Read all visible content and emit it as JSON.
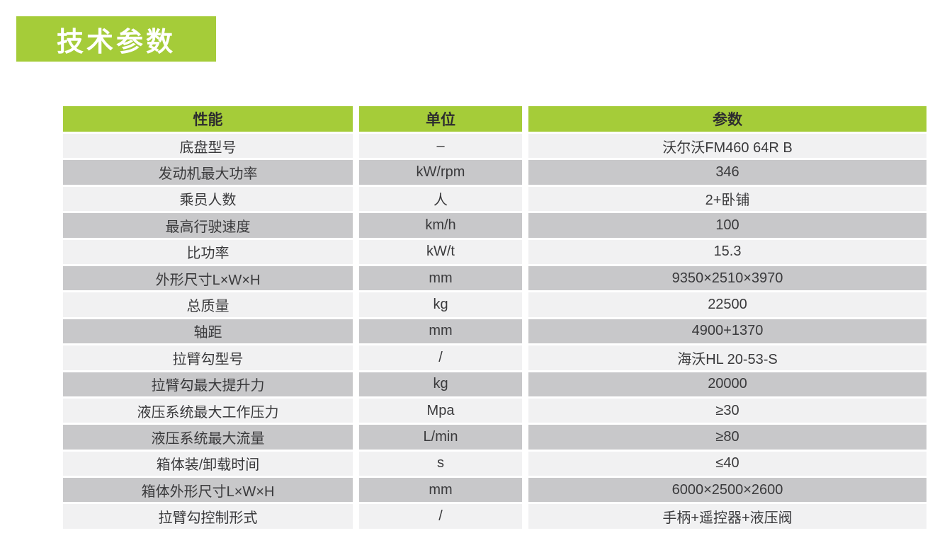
{
  "page": {
    "title_badge": "技术参数",
    "colors": {
      "green": "#a5cc39",
      "row_light": "#f1f1f2",
      "row_dark": "#c8c8ca",
      "text": "#3a3a3c"
    }
  },
  "table": {
    "headers": [
      "性能",
      "单位",
      "参数"
    ],
    "rows": [
      {
        "name": "底盘型号",
        "unit": "–",
        "value": "沃尔沃FM460 64R B"
      },
      {
        "name": "发动机最大功率",
        "unit": "kW/rpm",
        "value": "346"
      },
      {
        "name": "乘员人数",
        "unit": "人",
        "value": "2+卧铺"
      },
      {
        "name": "最高行驶速度",
        "unit": "km/h",
        "value": "100"
      },
      {
        "name": "比功率",
        "unit": "kW/t",
        "value": "15.3"
      },
      {
        "name": "外形尺寸L×W×H",
        "unit": "mm",
        "value": "9350×2510×3970"
      },
      {
        "name": "总质量",
        "unit": "kg",
        "value": "22500"
      },
      {
        "name": "轴距",
        "unit": "mm",
        "value": "4900+1370"
      },
      {
        "name": "拉臂勾型号",
        "unit": "/",
        "value": "海沃HL 20-53-S"
      },
      {
        "name": "拉臂勾最大提升力",
        "unit": "kg",
        "value": "20000"
      },
      {
        "name": "液压系统最大工作压力",
        "unit": "Mpa",
        "value": "≥30"
      },
      {
        "name": "液压系统最大流量",
        "unit": "L/min",
        "value": "≥80"
      },
      {
        "name": "箱体装/卸载时间",
        "unit": "s",
        "value": "≤40"
      },
      {
        "name": "箱体外形尺寸L×W×H",
        "unit": "mm",
        "value": "6000×2500×2600"
      },
      {
        "name": "拉臂勾控制形式",
        "unit": "/",
        "value": "手柄+遥控器+液压阀"
      }
    ]
  }
}
